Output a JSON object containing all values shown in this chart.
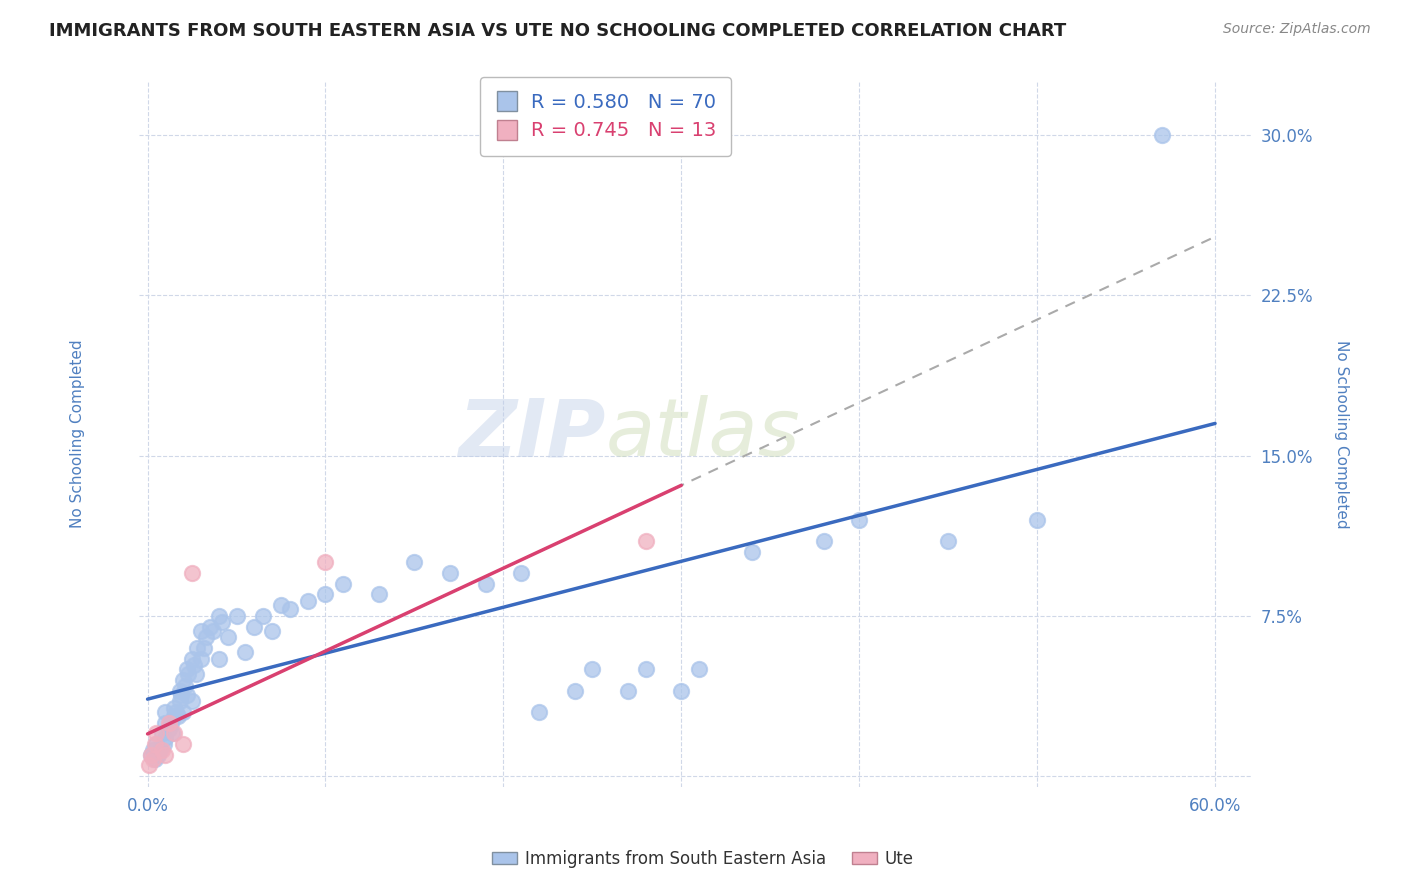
{
  "title": "IMMIGRANTS FROM SOUTH EASTERN ASIA VS UTE NO SCHOOLING COMPLETED CORRELATION CHART",
  "source": "Source: ZipAtlas.com",
  "ylabel": "No Schooling Completed",
  "xlim": [
    -0.005,
    0.62
  ],
  "ylim": [
    -0.005,
    0.325
  ],
  "xticks": [
    0.0,
    0.1,
    0.2,
    0.3,
    0.4,
    0.5,
    0.6
  ],
  "xticklabels_show": [
    "0.0%",
    "",
    "",
    "",
    "",
    "",
    "60.0%"
  ],
  "yticks": [
    0.075,
    0.15,
    0.225,
    0.3
  ],
  "yticklabels": [
    "7.5%",
    "15.0%",
    "22.5%",
    "30.0%"
  ],
  "blue_R": 0.58,
  "blue_N": 70,
  "pink_R": 0.745,
  "pink_N": 13,
  "blue_color": "#aac4ea",
  "pink_color": "#f0b0c0",
  "blue_line_color": "#3a6abf",
  "pink_line_color": "#d94070",
  "blue_label": "Immigrants from South Eastern Asia",
  "pink_label": "Ute",
  "watermark_zip": "ZIP",
  "watermark_atlas": "atlas",
  "blue_x": [
    0.002,
    0.003,
    0.004,
    0.005,
    0.006,
    0.007,
    0.008,
    0.009,
    0.01,
    0.01,
    0.01,
    0.012,
    0.013,
    0.014,
    0.015,
    0.015,
    0.016,
    0.017,
    0.018,
    0.018,
    0.019,
    0.02,
    0.02,
    0.021,
    0.022,
    0.022,
    0.023,
    0.025,
    0.025,
    0.026,
    0.027,
    0.028,
    0.03,
    0.03,
    0.032,
    0.033,
    0.035,
    0.037,
    0.04,
    0.04,
    0.042,
    0.045,
    0.05,
    0.055,
    0.06,
    0.065,
    0.07,
    0.075,
    0.08,
    0.09,
    0.1,
    0.11,
    0.13,
    0.15,
    0.17,
    0.19,
    0.21,
    0.22,
    0.24,
    0.25,
    0.27,
    0.28,
    0.3,
    0.31,
    0.34,
    0.38,
    0.4,
    0.45,
    0.5,
    0.57
  ],
  "blue_y": [
    0.01,
    0.012,
    0.008,
    0.015,
    0.01,
    0.012,
    0.02,
    0.015,
    0.018,
    0.025,
    0.03,
    0.022,
    0.025,
    0.02,
    0.028,
    0.032,
    0.03,
    0.028,
    0.035,
    0.04,
    0.038,
    0.03,
    0.045,
    0.042,
    0.038,
    0.05,
    0.048,
    0.035,
    0.055,
    0.052,
    0.048,
    0.06,
    0.055,
    0.068,
    0.06,
    0.065,
    0.07,
    0.068,
    0.055,
    0.075,
    0.072,
    0.065,
    0.075,
    0.058,
    0.07,
    0.075,
    0.068,
    0.08,
    0.078,
    0.082,
    0.085,
    0.09,
    0.085,
    0.1,
    0.095,
    0.09,
    0.095,
    0.03,
    0.04,
    0.05,
    0.04,
    0.05,
    0.04,
    0.05,
    0.105,
    0.11,
    0.12,
    0.11,
    0.12,
    0.3
  ],
  "pink_x": [
    0.001,
    0.002,
    0.003,
    0.004,
    0.005,
    0.008,
    0.01,
    0.012,
    0.015,
    0.02,
    0.025,
    0.1,
    0.28
  ],
  "pink_y": [
    0.005,
    0.01,
    0.008,
    0.015,
    0.02,
    0.012,
    0.01,
    0.025,
    0.02,
    0.015,
    0.095,
    0.1,
    0.11
  ],
  "background_color": "#ffffff",
  "grid_color": "#d0d8e8",
  "title_color": "#222222",
  "axis_label_color": "#5080c0",
  "tick_color": "#5080c0",
  "blue_trend_xlim": [
    0.0,
    0.6
  ],
  "pink_trend_xlim": [
    0.0,
    0.6
  ]
}
